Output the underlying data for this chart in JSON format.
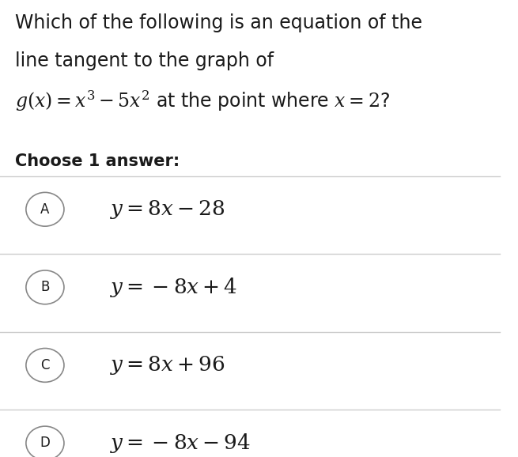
{
  "background_color": "#ffffff",
  "title_lines": [
    "Which of the following is an equation of the",
    "line tangent to the graph of",
    "$g(x) = x^3 - 5x^2$ at the point where $x = 2$?"
  ],
  "choose_label": "Choose 1 answer:",
  "options": [
    {
      "letter": "A",
      "text": "$y = 8x - 28$"
    },
    {
      "letter": "B",
      "text": "$y = -8x + 4$"
    },
    {
      "letter": "C",
      "text": "$y = 8x + 96$"
    },
    {
      "letter": "D",
      "text": "$y = -8x - 94$"
    }
  ],
  "title_fontsize": 17,
  "choose_fontsize": 15,
  "option_fontsize": 19,
  "letter_fontsize": 12,
  "text_color": "#1a1a1a",
  "circle_color": "#888888",
  "line_color": "#cccccc",
  "fig_width": 6.55,
  "fig_height": 5.78
}
